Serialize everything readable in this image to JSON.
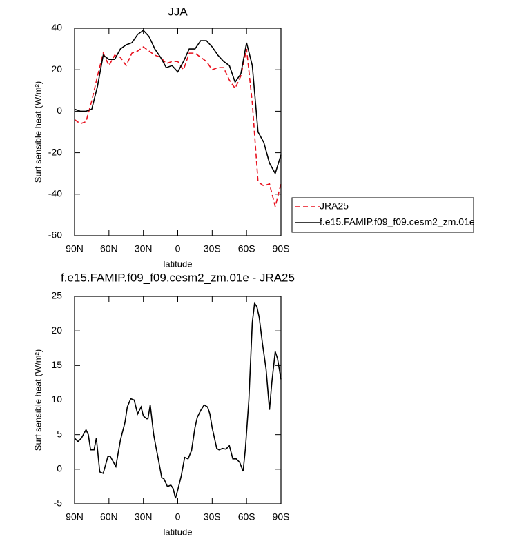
{
  "chart_data": [
    {
      "type": "line",
      "title": "JJA",
      "x_label": "latitude",
      "y_label": "Surf sensible heat (W/m²)",
      "x": [
        90,
        85,
        80,
        75,
        70,
        65,
        60,
        55,
        50,
        45,
        40,
        35,
        30,
        25,
        20,
        15,
        10,
        5,
        0,
        -5,
        -10,
        -15,
        -20,
        -25,
        -30,
        -35,
        -40,
        -45,
        -50,
        -55,
        -60,
        -65,
        -70,
        -75,
        -80,
        -85,
        -90
      ],
      "series": [
        {
          "name": "JRA25",
          "color": "#e8111e",
          "dashed": true,
          "values": [
            -4,
            -6,
            -5,
            5,
            17,
            28,
            22,
            27,
            26,
            22,
            28,
            29,
            31,
            29,
            27,
            26,
            23,
            24,
            24,
            20,
            28,
            28,
            26,
            24,
            20,
            21,
            21,
            15,
            11,
            17,
            30,
            4,
            -34,
            -36,
            -35,
            -46,
            -35
          ]
        },
        {
          "name": "f.e15.FAMIP.f09_f09.cesm2_zm.01e",
          "color": "#000000",
          "dashed": false,
          "values": [
            1,
            0,
            0,
            1,
            12,
            27,
            25,
            25,
            30,
            32,
            33,
            37,
            39,
            36,
            30,
            26,
            21,
            22,
            19,
            24,
            30,
            30,
            34,
            34,
            31,
            27,
            24,
            22,
            14,
            18,
            33,
            22,
            -10,
            -15,
            -25,
            -30,
            -21
          ]
        }
      ],
      "xlim": [
        90,
        -90
      ],
      "xticks": [
        {
          "value": 90,
          "label": "90N"
        },
        {
          "value": 60,
          "label": "60N"
        },
        {
          "value": 30,
          "label": "30N"
        },
        0,
        {
          "value": -30,
          "label": "30S"
        },
        {
          "value": -60,
          "label": "60S"
        },
        {
          "value": -90,
          "label": "90S"
        }
      ],
      "ylim": [
        -60,
        40
      ],
      "yticks": [
        40,
        20,
        0,
        -20,
        -40,
        -60
      ],
      "legend": "right"
    },
    {
      "type": "line",
      "title": "f.e15.FAMIP.f09_f09.cesm2_zm.01e - JRA25",
      "x_label": "latitude",
      "y_label": "Surf sensible heat (W/m²)",
      "x": [
        90,
        87,
        84,
        80,
        78,
        76,
        73,
        71,
        68,
        65,
        61,
        59,
        54,
        50,
        46,
        44,
        41,
        38,
        35,
        32,
        30,
        27,
        26,
        24,
        21,
        19,
        17,
        14,
        12,
        9,
        6,
        4,
        2,
        0,
        -3,
        -6,
        -9,
        -12,
        -15,
        -17,
        -20,
        -23,
        -26,
        -28,
        -30,
        -34,
        -36,
        -39,
        -42,
        -45,
        -48,
        -51,
        -54,
        -57,
        -59,
        -62,
        -65,
        -67,
        -69,
        -71,
        -74,
        -77,
        -80,
        -82,
        -85,
        -87,
        -90
      ],
      "values": [
        4.5,
        4,
        4.5,
        5.7,
        5,
        2.8,
        2.8,
        4.5,
        -0.4,
        -0.6,
        1.8,
        1.9,
        0.4,
        4.2,
        6.8,
        9,
        10.2,
        10,
        8,
        9,
        7.7,
        7.3,
        7.3,
        9.3,
        5,
        3.2,
        1.5,
        -1.2,
        -1.4,
        -2.5,
        -2.3,
        -2.8,
        -4.2,
        -3,
        -1,
        1.7,
        1.5,
        2.7,
        6,
        7.5,
        8.5,
        9.3,
        9,
        8,
        6,
        3,
        2.8,
        3,
        2.9,
        3.4,
        1.5,
        1.5,
        1,
        -0.3,
        3,
        10,
        21.2,
        24,
        23.5,
        22,
        18,
        14.5,
        8.6,
        12.5,
        17,
        16,
        13
      ],
      "color": "#000000",
      "xlim": [
        90,
        -90
      ],
      "xticks": [
        {
          "value": 90,
          "label": "90N"
        },
        {
          "value": 60,
          "label": "60N"
        },
        {
          "value": 30,
          "label": "30N"
        },
        0,
        {
          "value": -30,
          "label": "30S"
        },
        {
          "value": -60,
          "label": "60S"
        },
        {
          "value": -90,
          "label": "90S"
        }
      ],
      "ylim": [
        -5,
        25
      ],
      "yticks": [
        25,
        20,
        15,
        10,
        5,
        0,
        -5
      ]
    }
  ]
}
